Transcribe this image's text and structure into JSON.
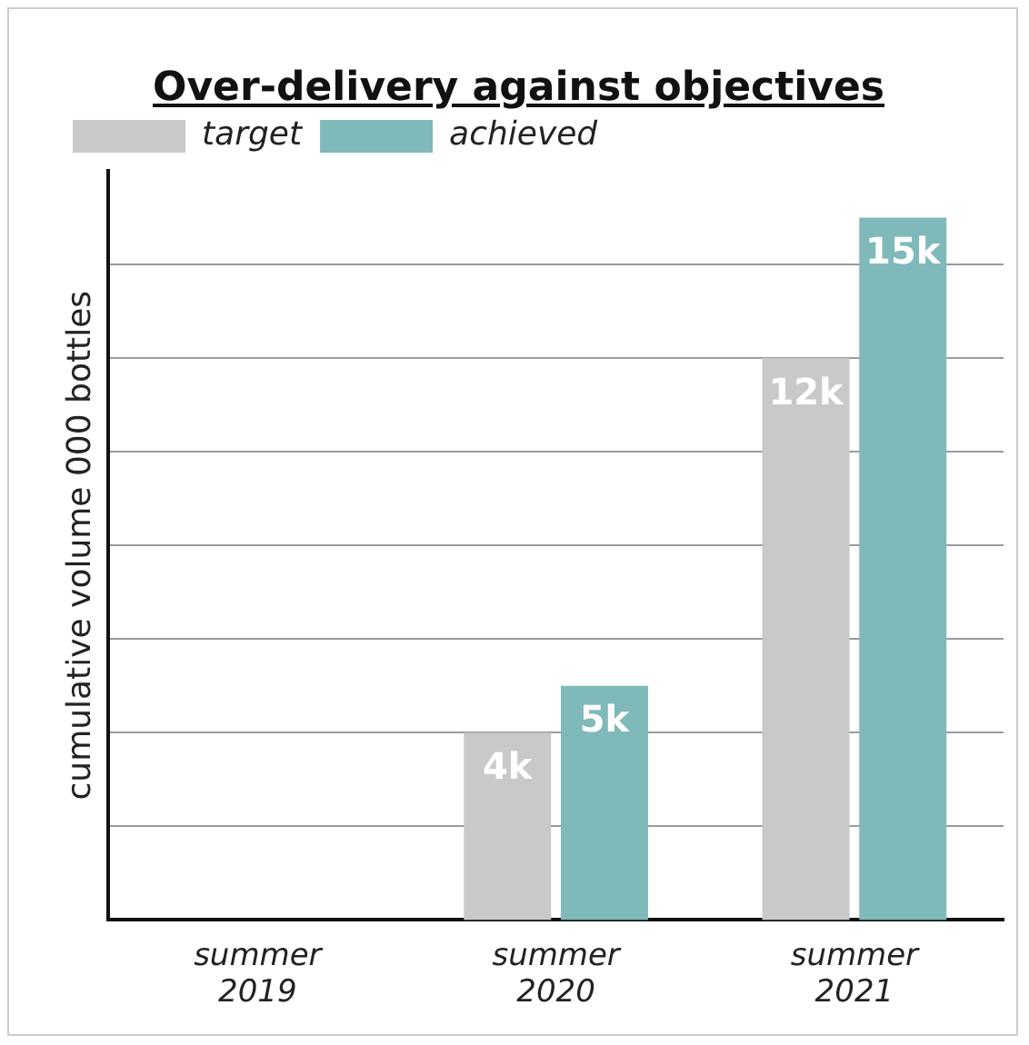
{
  "chart_data": {
    "type": "bar",
    "title": "Over-delivery against objectives",
    "ylabel": "cumulative volume 000 bottles",
    "categories": [
      "summer\n2019",
      "summer\n2020",
      "summer\n2021"
    ],
    "series": [
      {
        "name": "target",
        "color": "#c9c9c9",
        "values": [
          0,
          4,
          12
        ],
        "value_labels": [
          null,
          "4k",
          "12k"
        ]
      },
      {
        "name": "achieved",
        "color": "#80b9b9",
        "values": [
          0,
          5,
          15
        ],
        "value_labels": [
          null,
          "5k",
          "15k"
        ]
      }
    ],
    "ylim": [
      0,
      16
    ],
    "yticks": [
      {
        "value": 2,
        "label": null
      },
      {
        "value": 4,
        "label": null
      },
      {
        "value": 6,
        "label": null
      },
      {
        "value": 8,
        "label": null
      },
      {
        "value": 10,
        "label": null
      },
      {
        "value": 12,
        "label": null
      },
      {
        "value": 14,
        "label": null
      }
    ],
    "grid": "y",
    "legend": "top left",
    "tick_labels": "x"
  }
}
